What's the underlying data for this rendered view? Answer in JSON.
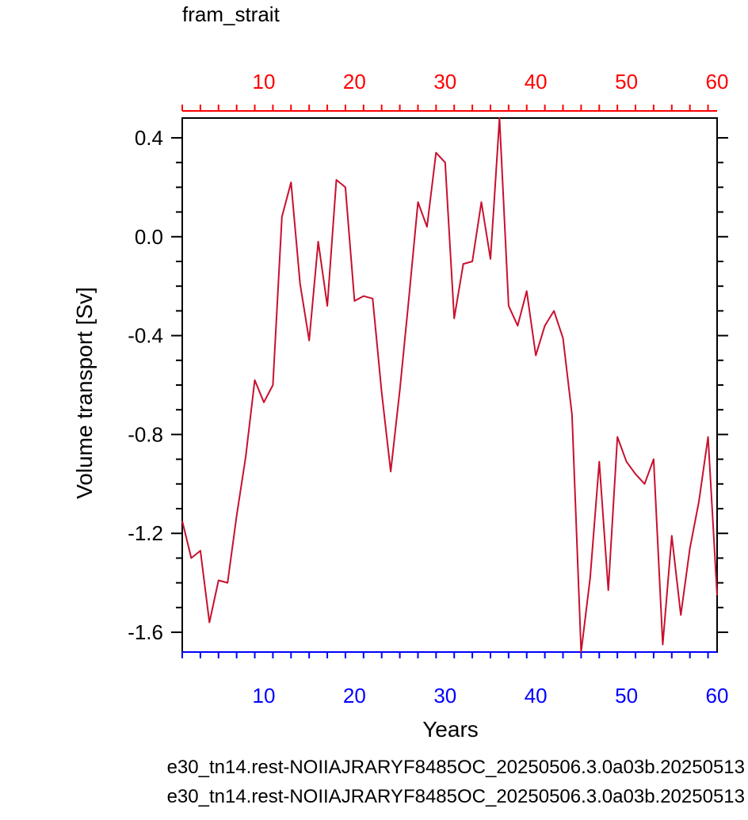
{
  "chart_data": {
    "type": "line",
    "title": "fram_strait",
    "xlabel": "Years",
    "ylabel": "Volume transport [Sv]",
    "xlim": [
      1,
      60
    ],
    "ylim": [
      -1.68,
      0.48
    ],
    "x_ticks": [
      10,
      20,
      30,
      40,
      50,
      60
    ],
    "y_ticks": [
      0.4,
      0.0,
      -0.4,
      -0.8,
      -1.2,
      -1.6
    ],
    "y_tick_labels": [
      "0.4",
      "0.0",
      "-0.4",
      "-0.8",
      "-1.2",
      "-1.6"
    ],
    "grid": false,
    "legend": "bottom",
    "series": [
      {
        "name": "e30_tn14.rest-NOIIAJRARYF8485OC_20250506.3.0a03b.20250513",
        "color": "#0000ff",
        "axis": "bottom",
        "values": []
      },
      {
        "name": "e30_tn14.rest-NOIIAJRARYF8485OC_20250506.3.0a03b.20250513",
        "color": "#ff0000",
        "axis": "top",
        "x": [
          1,
          2,
          3,
          4,
          5,
          6,
          7,
          8,
          9,
          10,
          11,
          12,
          13,
          14,
          15,
          16,
          17,
          18,
          19,
          20,
          21,
          22,
          23,
          24,
          25,
          26,
          27,
          28,
          29,
          30,
          31,
          32,
          33,
          34,
          35,
          36,
          37,
          38,
          39,
          40,
          41,
          42,
          43,
          44,
          45,
          46,
          47,
          48,
          49,
          50,
          51,
          52,
          53,
          54,
          55,
          56,
          57,
          58,
          59,
          60
        ],
        "values": [
          -1.15,
          -1.3,
          -1.27,
          -1.56,
          -1.39,
          -1.4,
          -1.13,
          -0.89,
          -0.58,
          -0.67,
          -0.6,
          0.08,
          0.22,
          -0.19,
          -0.42,
          -0.02,
          -0.28,
          0.23,
          0.2,
          -0.26,
          -0.24,
          -0.25,
          -0.63,
          -0.95,
          -0.62,
          -0.25,
          0.14,
          0.04,
          0.34,
          0.3,
          -0.33,
          -0.11,
          -0.1,
          0.14,
          -0.09,
          0.48,
          -0.28,
          -0.36,
          -0.22,
          -0.48,
          -0.36,
          -0.3,
          -0.41,
          -0.72,
          -1.68,
          -1.38,
          -0.91,
          -1.43,
          -0.81,
          -0.91,
          -0.96,
          -1.0,
          -0.9,
          -1.65,
          -1.21,
          -1.53,
          -1.26,
          -1.07,
          -0.81,
          -1.45
        ]
      }
    ],
    "plot_line_color": "#c8102e",
    "bottom_axis_color": "#0000ff",
    "top_axis_color": "#ff0000"
  }
}
